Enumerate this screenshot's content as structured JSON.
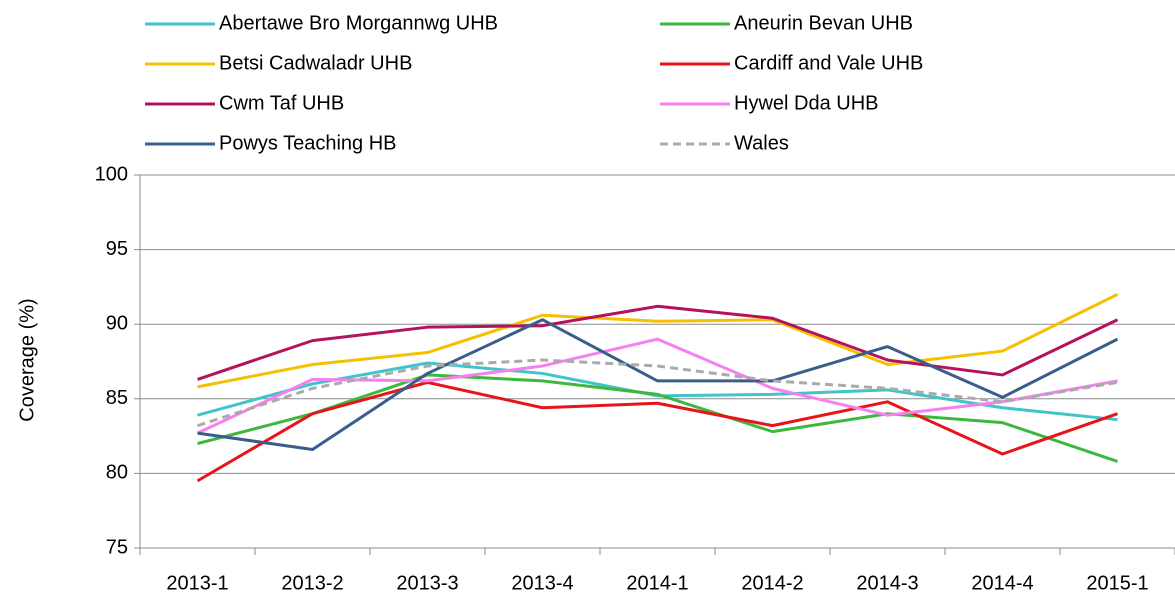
{
  "chart_data": {
    "type": "line",
    "y_label": "Coverage (%)",
    "categories": [
      "2013-1",
      "2013-2",
      "2013-3",
      "2013-4",
      "2014-1",
      "2014-2",
      "2014-3",
      "2014-4",
      "2015-1"
    ],
    "ylim": [
      75,
      100
    ],
    "yticks": [
      75,
      80,
      85,
      90,
      95,
      100
    ],
    "grid": true,
    "series": [
      {
        "name": "Abertawe Bro Morgannwg UHB",
        "color": "#3fc5c9",
        "values": [
          83.9,
          86.0,
          87.4,
          86.7,
          85.2,
          85.3,
          85.6,
          84.4,
          83.6
        ]
      },
      {
        "name": "Aneurin Bevan UHB",
        "color": "#3cb93c",
        "values": [
          82.0,
          84.0,
          86.6,
          86.2,
          85.3,
          82.8,
          84.0,
          83.4,
          80.8
        ]
      },
      {
        "name": "Betsi Cadwaladr UHB",
        "color": "#f5c000",
        "values": [
          85.8,
          87.3,
          88.1,
          90.6,
          90.2,
          90.3,
          87.3,
          88.2,
          92.0
        ]
      },
      {
        "name": "Cardiff and Vale UHB",
        "color": "#e8141b",
        "values": [
          79.5,
          84.0,
          86.1,
          84.4,
          84.7,
          83.2,
          84.8,
          81.3,
          84.0
        ]
      },
      {
        "name": "Cwm Taf UHB",
        "color": "#b5125e",
        "values": [
          86.3,
          88.9,
          89.8,
          89.9,
          91.2,
          90.4,
          87.6,
          86.6,
          90.3
        ]
      },
      {
        "name": "Hywel Dda UHB",
        "color": "#f77ff0",
        "values": [
          82.7,
          86.3,
          86.2,
          87.2,
          89.0,
          85.7,
          83.9,
          84.8,
          86.2
        ]
      },
      {
        "name": "Powys Teaching HB",
        "color": "#3a5e8c",
        "values": [
          82.7,
          81.6,
          86.7,
          90.3,
          86.2,
          86.2,
          88.5,
          85.1,
          89.0
        ]
      },
      {
        "name": "Wales",
        "color": "#aaaaaa",
        "dashed": true,
        "values": [
          83.2,
          85.7,
          87.2,
          87.6,
          87.2,
          86.2,
          85.7,
          84.8,
          86.1
        ]
      }
    ]
  }
}
